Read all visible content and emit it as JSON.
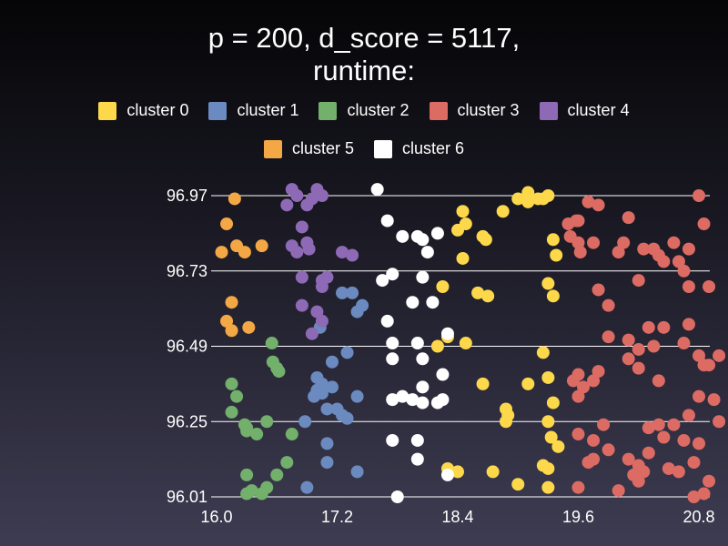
{
  "chart_data": {
    "type": "scatter",
    "title_line1": "p = 200, d_score = 5117,",
    "title_line2": "runtime:",
    "xlim": [
      16.0,
      20.8
    ],
    "ylim": [
      96.01,
      96.97
    ],
    "x_ticks": [
      "16.0",
      "17.2",
      "18.4",
      "19.6",
      "20.8"
    ],
    "y_ticks": [
      "96.97",
      "96.73",
      "96.49",
      "96.25",
      "96.01"
    ],
    "grid": "horizontal",
    "legend_position": "top",
    "series": [
      {
        "name": "cluster 0",
        "color": "#fdd84b",
        "points": [
          [
            18.45,
            96.92
          ],
          [
            18.48,
            96.88
          ],
          [
            18.4,
            96.86
          ],
          [
            18.65,
            96.84
          ],
          [
            18.68,
            96.83
          ],
          [
            18.85,
            96.92
          ],
          [
            19.1,
            96.98
          ],
          [
            19.2,
            96.96
          ],
          [
            19.25,
            96.96
          ],
          [
            19.3,
            96.97
          ],
          [
            19.0,
            96.96
          ],
          [
            19.1,
            96.95
          ],
          [
            19.35,
            96.83
          ],
          [
            19.38,
            96.78
          ],
          [
            19.3,
            96.69
          ],
          [
            19.35,
            96.65
          ],
          [
            18.45,
            96.77
          ],
          [
            18.25,
            96.68
          ],
          [
            18.6,
            96.66
          ],
          [
            18.7,
            96.65
          ],
          [
            18.3,
            96.52
          ],
          [
            18.48,
            96.5
          ],
          [
            18.2,
            96.49
          ],
          [
            19.25,
            96.47
          ],
          [
            19.3,
            96.39
          ],
          [
            19.35,
            96.31
          ],
          [
            18.65,
            96.37
          ],
          [
            18.88,
            96.29
          ],
          [
            18.9,
            96.27
          ],
          [
            18.88,
            96.25
          ],
          [
            19.1,
            96.37
          ],
          [
            19.3,
            96.25
          ],
          [
            19.33,
            96.2
          ],
          [
            19.4,
            96.17
          ],
          [
            19.25,
            96.11
          ],
          [
            19.3,
            96.1
          ],
          [
            18.3,
            96.1
          ],
          [
            18.4,
            96.09
          ],
          [
            18.75,
            96.09
          ],
          [
            19.0,
            96.05
          ],
          [
            19.3,
            96.04
          ]
        ]
      },
      {
        "name": "cluster 1",
        "color": "#6a8ac0",
        "points": [
          [
            17.0,
            96.39
          ],
          [
            17.03,
            96.55
          ],
          [
            17.05,
            96.37
          ],
          [
            17.15,
            96.44
          ],
          [
            17.3,
            96.47
          ],
          [
            17.35,
            96.66
          ],
          [
            17.4,
            96.6
          ],
          [
            17.45,
            96.62
          ],
          [
            17.25,
            96.66
          ],
          [
            17.0,
            96.35
          ],
          [
            17.15,
            96.36
          ],
          [
            17.1,
            96.18
          ],
          [
            17.1,
            96.29
          ],
          [
            17.4,
            96.33
          ],
          [
            17.3,
            96.26
          ],
          [
            17.2,
            96.29
          ],
          [
            16.88,
            96.25
          ],
          [
            17.1,
            96.12
          ],
          [
            17.4,
            96.09
          ],
          [
            16.9,
            96.04
          ],
          [
            16.97,
            96.33
          ],
          [
            17.05,
            96.34
          ],
          [
            17.25,
            96.27
          ]
        ]
      },
      {
        "name": "cluster 2",
        "color": "#72b06c",
        "points": [
          [
            16.55,
            96.5
          ],
          [
            16.56,
            96.44
          ],
          [
            16.6,
            96.42
          ],
          [
            16.62,
            96.41
          ],
          [
            16.15,
            96.37
          ],
          [
            16.2,
            96.33
          ],
          [
            16.15,
            96.28
          ],
          [
            16.28,
            96.24
          ],
          [
            16.3,
            96.23
          ],
          [
            16.3,
            96.22
          ],
          [
            16.4,
            96.21
          ],
          [
            16.3,
            96.08
          ],
          [
            16.6,
            96.08
          ],
          [
            16.35,
            96.03
          ],
          [
            16.45,
            96.02
          ],
          [
            16.3,
            96.02
          ],
          [
            16.5,
            96.04
          ],
          [
            16.5,
            96.25
          ],
          [
            16.75,
            96.21
          ],
          [
            16.7,
            96.12
          ]
        ]
      },
      {
        "name": "cluster 3",
        "color": "#dc6b64",
        "points": [
          [
            19.5,
            96.88
          ],
          [
            19.58,
            96.89
          ],
          [
            19.6,
            96.89
          ],
          [
            19.52,
            96.84
          ],
          [
            19.6,
            96.82
          ],
          [
            19.62,
            96.79
          ],
          [
            19.75,
            96.82
          ],
          [
            19.7,
            96.95
          ],
          [
            19.8,
            96.94
          ],
          [
            20.05,
            96.82
          ],
          [
            20.0,
            96.79
          ],
          [
            20.1,
            96.9
          ],
          [
            20.25,
            96.8
          ],
          [
            20.35,
            96.8
          ],
          [
            20.4,
            96.78
          ],
          [
            20.45,
            96.76
          ],
          [
            20.55,
            96.82
          ],
          [
            20.7,
            96.8
          ],
          [
            20.8,
            96.97
          ],
          [
            20.85,
            96.88
          ],
          [
            20.65,
            96.73
          ],
          [
            20.6,
            96.76
          ],
          [
            20.7,
            96.68
          ],
          [
            20.9,
            96.68
          ],
          [
            20.2,
            96.7
          ],
          [
            20.45,
            96.55
          ],
          [
            20.7,
            96.56
          ],
          [
            20.65,
            96.5
          ],
          [
            20.8,
            96.46
          ],
          [
            20.85,
            96.43
          ],
          [
            20.9,
            96.43
          ],
          [
            21.0,
            96.46
          ],
          [
            20.2,
            96.48
          ],
          [
            20.1,
            96.51
          ],
          [
            19.8,
            96.67
          ],
          [
            19.9,
            96.62
          ],
          [
            19.9,
            96.52
          ],
          [
            20.3,
            96.55
          ],
          [
            20.35,
            96.49
          ],
          [
            19.6,
            96.4
          ],
          [
            19.55,
            96.38
          ],
          [
            19.6,
            96.33
          ],
          [
            19.65,
            96.36
          ],
          [
            19.75,
            96.38
          ],
          [
            19.8,
            96.41
          ],
          [
            20.1,
            96.45
          ],
          [
            20.2,
            96.42
          ],
          [
            20.4,
            96.38
          ],
          [
            20.8,
            96.33
          ],
          [
            20.95,
            96.32
          ],
          [
            21.0,
            96.25
          ],
          [
            20.7,
            96.27
          ],
          [
            20.55,
            96.24
          ],
          [
            20.4,
            96.24
          ],
          [
            20.3,
            96.23
          ],
          [
            20.45,
            96.2
          ],
          [
            20.65,
            96.19
          ],
          [
            20.8,
            96.18
          ],
          [
            20.3,
            96.15
          ],
          [
            20.1,
            96.13
          ],
          [
            20.2,
            96.11
          ],
          [
            20.15,
            96.08
          ],
          [
            20.25,
            96.09
          ],
          [
            20.6,
            96.09
          ],
          [
            20.75,
            96.12
          ],
          [
            20.5,
            96.1
          ],
          [
            20.9,
            96.06
          ],
          [
            20.75,
            96.01
          ],
          [
            20.85,
            96.02
          ],
          [
            20.2,
            96.06
          ],
          [
            20.0,
            96.03
          ],
          [
            19.6,
            96.04
          ],
          [
            19.75,
            96.13
          ],
          [
            19.75,
            96.19
          ],
          [
            19.85,
            96.24
          ],
          [
            19.9,
            96.16
          ],
          [
            19.6,
            96.21
          ],
          [
            19.7,
            96.12
          ]
        ]
      },
      {
        "name": "cluster 4",
        "color": "#8e6ab6",
        "points": [
          [
            16.75,
            96.99
          ],
          [
            16.8,
            96.97
          ],
          [
            16.95,
            96.96
          ],
          [
            17.0,
            96.99
          ],
          [
            17.05,
            96.97
          ],
          [
            16.9,
            96.94
          ],
          [
            16.7,
            96.94
          ],
          [
            16.85,
            96.87
          ],
          [
            16.75,
            96.81
          ],
          [
            16.8,
            96.79
          ],
          [
            16.9,
            96.82
          ],
          [
            16.92,
            96.8
          ],
          [
            17.25,
            96.79
          ],
          [
            17.35,
            96.78
          ],
          [
            16.85,
            96.71
          ],
          [
            17.05,
            96.7
          ],
          [
            17.1,
            96.71
          ],
          [
            17.05,
            96.68
          ],
          [
            16.85,
            96.62
          ],
          [
            17.0,
            96.6
          ],
          [
            17.05,
            96.57
          ],
          [
            16.95,
            96.53
          ]
        ]
      },
      {
        "name": "cluster 5",
        "color": "#f4a845",
        "points": [
          [
            16.18,
            96.96
          ],
          [
            16.1,
            96.88
          ],
          [
            16.05,
            96.79
          ],
          [
            16.2,
            96.81
          ],
          [
            16.28,
            96.79
          ],
          [
            16.45,
            96.81
          ],
          [
            16.15,
            96.63
          ],
          [
            16.1,
            96.57
          ],
          [
            16.15,
            96.54
          ],
          [
            16.32,
            96.55
          ]
        ]
      },
      {
        "name": "cluster 6",
        "color": "#ffffff",
        "points": [
          [
            17.6,
            96.99
          ],
          [
            17.7,
            96.89
          ],
          [
            17.85,
            96.84
          ],
          [
            18.0,
            96.84
          ],
          [
            18.05,
            96.83
          ],
          [
            18.2,
            96.85
          ],
          [
            18.1,
            96.79
          ],
          [
            17.75,
            96.72
          ],
          [
            17.65,
            96.7
          ],
          [
            18.05,
            96.71
          ],
          [
            17.95,
            96.63
          ],
          [
            18.15,
            96.63
          ],
          [
            17.7,
            96.57
          ],
          [
            18.3,
            96.53
          ],
          [
            17.75,
            96.5
          ],
          [
            18.0,
            96.5
          ],
          [
            17.75,
            96.45
          ],
          [
            18.05,
            96.45
          ],
          [
            18.25,
            96.4
          ],
          [
            18.05,
            96.36
          ],
          [
            17.85,
            96.33
          ],
          [
            17.95,
            96.32
          ],
          [
            18.05,
            96.31
          ],
          [
            18.2,
            96.31
          ],
          [
            18.25,
            96.32
          ],
          [
            17.75,
            96.32
          ],
          [
            17.75,
            96.19
          ],
          [
            18.0,
            96.19
          ],
          [
            18.0,
            96.13
          ],
          [
            18.3,
            96.08
          ],
          [
            17.8,
            96.01
          ]
        ]
      }
    ]
  }
}
